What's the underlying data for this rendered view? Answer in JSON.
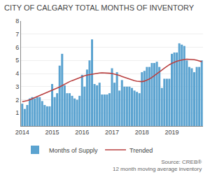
{
  "chart_data": {
    "type": "bar",
    "title": "CITY OF CALGARY TOTAL MONTHS OF INVENTORY",
    "categories": [
      "2014",
      null,
      null,
      null,
      null,
      null,
      null,
      null,
      null,
      null,
      null,
      null,
      "2015",
      null,
      null,
      null,
      null,
      null,
      null,
      null,
      null,
      null,
      null,
      null,
      "2016",
      null,
      null,
      null,
      null,
      null,
      null,
      null,
      null,
      null,
      null,
      null,
      "2017",
      null,
      null,
      null,
      null,
      null,
      null,
      null,
      null,
      null,
      null,
      null,
      "2018",
      null,
      null,
      null,
      null,
      null,
      null,
      null,
      null,
      null,
      null,
      null,
      "2019",
      null,
      null,
      null,
      null,
      null,
      null,
      null,
      null,
      null,
      null,
      null,
      null
    ],
    "series": [
      {
        "name": "Months of Supply",
        "type": "bar",
        "color": "#5BA3D0",
        "values": [
          1.7,
          1.3,
          1.6,
          2.1,
          2.2,
          2.1,
          2.2,
          2.2,
          1.9,
          1.6,
          1.5,
          1.5,
          3.2,
          2.2,
          2.5,
          4.6,
          5.5,
          3.1,
          2.5,
          2.5,
          2.3,
          2.1,
          2.0,
          2.3,
          3.9,
          3.0,
          4.3,
          5.0,
          6.6,
          3.2,
          3.1,
          3.3,
          2.4,
          2.4,
          2.4,
          2.5,
          4.4,
          3.3,
          4.1,
          2.7,
          3.5,
          3.0,
          3.0,
          3.0,
          2.9,
          2.7,
          2.6,
          2.5,
          4.1,
          4.2,
          4.5,
          4.5,
          4.8,
          4.8,
          4.9,
          4.5,
          2.9,
          3.6,
          3.6,
          3.6,
          5.5,
          5.6,
          5.6,
          6.3,
          6.2,
          6.1,
          5.0,
          4.5,
          4.4,
          4.1,
          4.5,
          4.5,
          5.0
        ]
      },
      {
        "name": "Trended",
        "type": "line",
        "color": "#B94040",
        "values": [
          1.85,
          1.88,
          1.93,
          2.0,
          2.08,
          2.17,
          2.26,
          2.34,
          2.42,
          2.5,
          2.57,
          2.64,
          2.71,
          2.79,
          2.87,
          2.97,
          3.08,
          3.19,
          3.29,
          3.38,
          3.46,
          3.54,
          3.62,
          3.7,
          3.77,
          3.83,
          3.88,
          3.92,
          3.96,
          3.99,
          4.02,
          4.04,
          4.05,
          4.05,
          4.04,
          4.02,
          4.0,
          3.96,
          3.91,
          3.85,
          3.78,
          3.71,
          3.63,
          3.56,
          3.5,
          3.45,
          3.41,
          3.38,
          3.38,
          3.42,
          3.49,
          3.59,
          3.7,
          3.83,
          3.97,
          4.11,
          4.26,
          4.41,
          4.55,
          4.67,
          4.77,
          4.86,
          4.93,
          4.99,
          5.04,
          5.07,
          5.09,
          5.09,
          5.08,
          5.05,
          5.01,
          4.96,
          4.9
        ]
      }
    ],
    "ylim": [
      0,
      8
    ],
    "yticks": [
      1,
      2,
      3,
      4,
      5,
      6,
      7,
      8
    ],
    "grid": true,
    "legend": "bottom left",
    "annotations": [
      "Source: CREB®",
      "12 month moving average inventory"
    ]
  }
}
